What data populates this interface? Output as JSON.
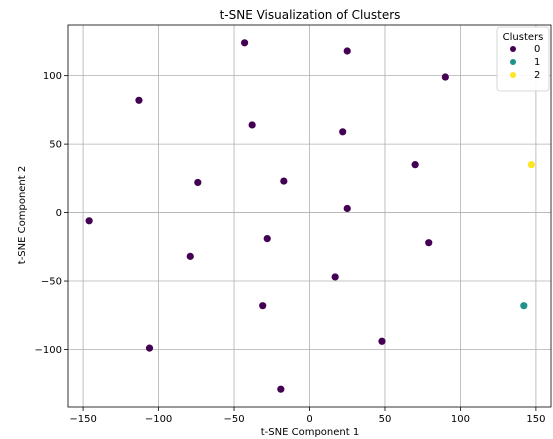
{
  "chart_data": {
    "type": "scatter",
    "title": "t-SNE Visualization of Clusters",
    "xlabel": "t-SNE Component 1",
    "ylabel": "t-SNE Component 2",
    "xlim": [
      -160,
      160
    ],
    "ylim": [
      -142,
      137
    ],
    "xticks": [
      -150,
      -100,
      -50,
      0,
      50,
      100,
      150
    ],
    "yticks": [
      -100,
      -50,
      0,
      50,
      100
    ],
    "grid": true,
    "legend": {
      "title": "Clusters",
      "placement": "top-right"
    },
    "series": [
      {
        "name": "0",
        "color": "#440154",
        "points": [
          [
            -43,
            124
          ],
          [
            25,
            118
          ],
          [
            90,
            99
          ],
          [
            -113,
            82
          ],
          [
            -38,
            64
          ],
          [
            22,
            59
          ],
          [
            70,
            35
          ],
          [
            -74,
            22
          ],
          [
            -17,
            23
          ],
          [
            -146,
            -6
          ],
          [
            25,
            3
          ],
          [
            -28,
            -19
          ],
          [
            79,
            -22
          ],
          [
            -79,
            -32
          ],
          [
            17,
            -47
          ],
          [
            -31,
            -68
          ],
          [
            48,
            -94
          ],
          [
            -106,
            -99
          ],
          [
            -19,
            -129
          ]
        ]
      },
      {
        "name": "1",
        "color": "#21918c",
        "points": [
          [
            142,
            -68
          ]
        ]
      },
      {
        "name": "2",
        "color": "#fde725",
        "points": [
          [
            147,
            35
          ]
        ]
      }
    ]
  }
}
